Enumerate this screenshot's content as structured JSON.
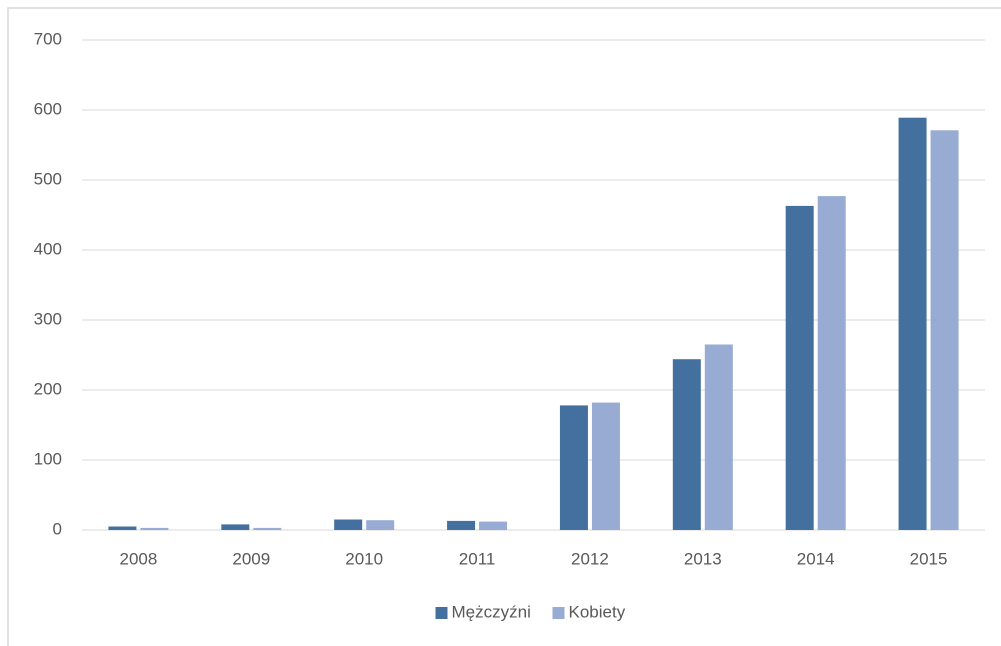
{
  "chart_data": {
    "type": "bar",
    "categories": [
      "2008",
      "2009",
      "2010",
      "2011",
      "2012",
      "2013",
      "2014",
      "2015"
    ],
    "series": [
      {
        "name": "Mężczyźni",
        "color": "#44709f",
        "values": [
          5,
          8,
          15,
          13,
          178,
          244,
          463,
          589
        ]
      },
      {
        "name": "Kobiety",
        "color": "#97abd3",
        "values": [
          3,
          3,
          14,
          12,
          182,
          265,
          477,
          571
        ]
      }
    ],
    "ylim": [
      0,
      700
    ],
    "yticks": [
      0,
      100,
      200,
      300,
      400,
      500,
      600,
      700
    ],
    "grid": true,
    "legend": "bottom"
  }
}
